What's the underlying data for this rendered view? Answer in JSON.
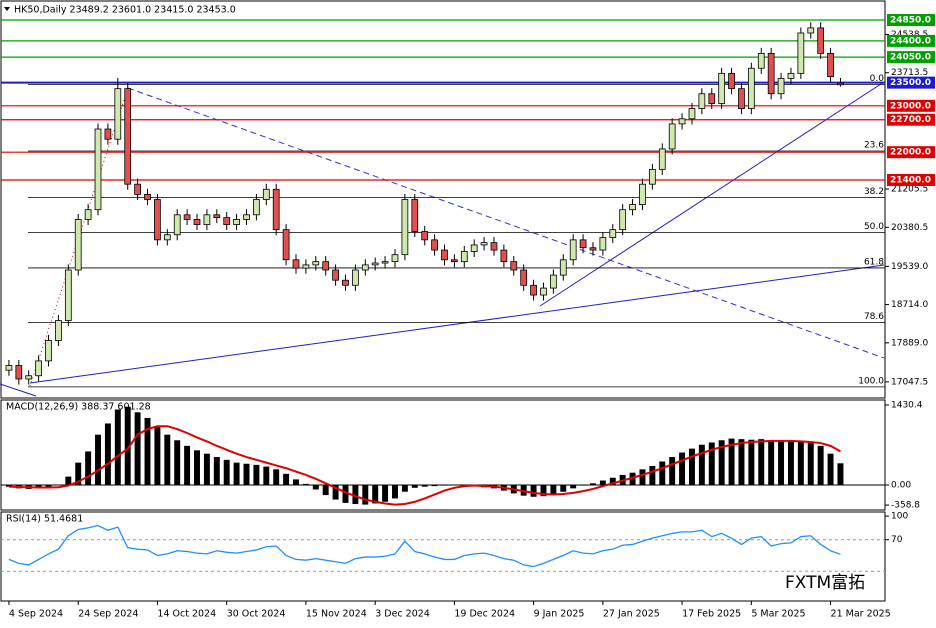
{
  "chart_data": {
    "type": "candlestick",
    "title": "HK50,Daily  23489.2 23601.0 23415.0 23453.0",
    "watermark": "FXTM富拓",
    "up_color": "#cfe8b0",
    "down_color": "#e05050",
    "wick_color": "#000000",
    "ylim": [
      16700,
      25260
    ],
    "yticks": [
      24538.5,
      23713.5,
      21205.5,
      20380.5,
      {
        "value": 19539,
        "label": "19539.0"
      },
      {
        "value": 18714,
        "label": "18714.0"
      },
      {
        "value": 17889,
        "label": "17889.0"
      },
      17047.5
    ],
    "xlim": [
      -0.8,
      88.5
    ],
    "xticks": [
      {
        "value": 0,
        "label": "4 Sep 2024"
      },
      {
        "value": 7,
        "label": "24 Sep 2024"
      },
      {
        "value": 15,
        "label": "14 Oct 2024"
      },
      {
        "value": 22,
        "label": "30 Oct 2024"
      },
      {
        "value": 30,
        "label": "15 Nov 2024"
      },
      {
        "value": 37,
        "label": "3 Dec 2024"
      },
      {
        "value": 45,
        "label": "19 Dec 2024"
      },
      {
        "value": 53,
        "label": "9 Jan 2025"
      },
      {
        "value": 60,
        "label": "27 Jan 2025"
      },
      {
        "value": 68,
        "label": "17 Feb 2025"
      },
      {
        "value": 75,
        "label": "5 Mar 2025"
      },
      {
        "value": 83,
        "label": "21 Mar 2025"
      }
    ],
    "levels": [
      {
        "value": 24850,
        "label": "24850.0",
        "color": "#00a000"
      },
      {
        "value": 24400,
        "label": "24400.0",
        "color": "#00a000"
      },
      {
        "value": 24050,
        "label": "24050.0",
        "color": "#00a000"
      },
      {
        "value": 23500,
        "label": "23500.0",
        "color": "#1a1ad0"
      },
      {
        "value": 23000,
        "label": "23000.0",
        "color": "#e00000"
      },
      {
        "value": 22700,
        "label": "22700.0",
        "color": "#e00000"
      },
      {
        "value": 22000,
        "label": "22000.0",
        "color": "#e00000"
      },
      {
        "value": 21400,
        "label": "21400.0",
        "color": "#e00000"
      }
    ],
    "fibonacci": [
      {
        "value": 23460,
        "label": "0.0"
      },
      {
        "value": 22025,
        "label": "23.6"
      },
      {
        "value": 21026,
        "label": "38.2"
      },
      {
        "value": 20265,
        "label": "50.0"
      },
      {
        "value": 19504,
        "label": "61.8"
      },
      {
        "value": 18331,
        "label": "78.6"
      },
      {
        "value": 16940,
        "label": "100.0"
      }
    ],
    "open": [
      17300,
      17400,
      17110,
      17180,
      17500,
      17940,
      18370,
      19460,
      20550,
      20760,
      22500,
      22280,
      23370,
      21310,
      21090,
      20980,
      20110,
      20220,
      20650,
      20550,
      20440,
      20650,
      20590,
      20440,
      20550,
      20650,
      20980,
      21200,
      20330,
      19680,
      19500,
      19570,
      19640,
      19460,
      19240,
      19130,
      19460,
      19570,
      19610,
      19640,
      19790,
      20980,
      20290,
      20110,
      19890,
      19680,
      19640,
      19860,
      20000,
      20050,
      19890,
      19640,
      19460,
      19130,
      18920,
      19070,
      19350,
      19680,
      20110,
      19940,
      19890,
      20160,
      20330,
      20760,
      20870,
      21310,
      21630,
      22070,
      22610,
      22720,
      22940,
      23260,
      23050,
      23700,
      23370,
      22940,
      23810,
      24130,
      23260,
      23590,
      23700,
      24570,
      24680,
      24130,
      23489.2
    ],
    "high": [
      17520,
      17520,
      17300,
      17620,
      18060,
      18490,
      19580,
      20670,
      20880,
      22620,
      22620,
      23601,
      23490,
      21430,
      21210,
      21100,
      20340,
      20770,
      20770,
      20670,
      20770,
      20770,
      20710,
      20670,
      20770,
      21100,
      21320,
      21320,
      20450,
      19800,
      19690,
      19760,
      19760,
      19580,
      19360,
      19580,
      19690,
      19730,
      19760,
      19910,
      21100,
      21100,
      20410,
      20230,
      20010,
      19800,
      19980,
      20120,
      20170,
      20170,
      20010,
      19760,
      19580,
      19250,
      19190,
      19470,
      19800,
      20230,
      20230,
      20060,
      20280,
      20450,
      20880,
      20990,
      21430,
      21750,
      22190,
      22730,
      22840,
      23060,
      23380,
      23380,
      23820,
      23820,
      23490,
      23930,
      24250,
      24250,
      23710,
      23820,
      24690,
      24800,
      24800,
      24250,
      23601
    ],
    "low": [
      17180,
      16990,
      16990,
      17060,
      17380,
      17820,
      18250,
      19340,
      20430,
      20640,
      22160,
      22160,
      21190,
      20970,
      20860,
      19990,
      19990,
      20100,
      20430,
      20320,
      20320,
      20470,
      20320,
      20320,
      20430,
      20530,
      20860,
      20210,
      19560,
      19380,
      19380,
      19450,
      19340,
      19120,
      19010,
      19010,
      19340,
      19450,
      19490,
      19520,
      19670,
      20170,
      19990,
      19770,
      19560,
      19520,
      19520,
      19740,
      19880,
      19770,
      19520,
      19340,
      19010,
      18800,
      18800,
      18950,
      19230,
      19560,
      19820,
      19770,
      19770,
      20040,
      20210,
      20640,
      20750,
      21190,
      21510,
      21950,
      22490,
      22600,
      22820,
      22930,
      22930,
      23250,
      22820,
      22820,
      23690,
      23140,
      23140,
      23470,
      23580,
      24450,
      24010,
      23510,
      23415
    ],
    "close": [
      17400,
      17110,
      17180,
      17500,
      17940,
      18370,
      19460,
      20550,
      20760,
      22500,
      22280,
      23370,
      21310,
      21090,
      20980,
      20110,
      20220,
      20650,
      20550,
      20440,
      20650,
      20590,
      20440,
      20550,
      20650,
      20980,
      21200,
      20330,
      19680,
      19500,
      19570,
      19640,
      19460,
      19240,
      19130,
      19460,
      19570,
      19610,
      19640,
      19790,
      20980,
      20290,
      20110,
      19890,
      19680,
      19640,
      19860,
      20000,
      20050,
      19890,
      19640,
      19460,
      19130,
      18920,
      19070,
      19350,
      19680,
      20110,
      19940,
      19890,
      20160,
      20330,
      20760,
      20870,
      21310,
      21630,
      22070,
      22610,
      22720,
      22940,
      23260,
      23050,
      23700,
      23370,
      22940,
      23810,
      24130,
      23260,
      23590,
      23700,
      24570,
      24680,
      24130,
      23630,
      23453
    ],
    "macd": {
      "title": "MACD(12,26,9) 388.37 601.28",
      "ylim": [
        -447,
        1520
      ],
      "yticks": [
        1430.4,
        {
          "value": 0,
          "label": "0.00"
        },
        -358.8
      ],
      "histogram_color": "#000000",
      "signal_color": "#e00000",
      "histogram": [
        -30,
        -60,
        -70,
        -60,
        -40,
        0,
        150,
        400,
        600,
        900,
        1100,
        1350,
        1400,
        1300,
        1200,
        1050,
        900,
        800,
        700,
        620,
        560,
        500,
        450,
        400,
        380,
        360,
        330,
        280,
        200,
        100,
        20,
        -80,
        -180,
        -260,
        -320,
        -340,
        -350,
        -330,
        -300,
        -240,
        -120,
        -50,
        -30,
        -20,
        -10,
        0,
        -10,
        -20,
        -40,
        -60,
        -100,
        -150,
        -190,
        -210,
        -200,
        -170,
        -120,
        -60,
        -10,
        30,
        80,
        130,
        180,
        220,
        280,
        340,
        420,
        500,
        580,
        650,
        720,
        760,
        800,
        830,
        820,
        810,
        820,
        800,
        780,
        790,
        770,
        760,
        700,
        560,
        388.37
      ],
      "signal": [
        -30,
        -35,
        -40,
        -45,
        -45,
        -40,
        -10,
        60,
        150,
        260,
        380,
        520,
        650,
        900,
        1000,
        1050,
        1050,
        1000,
        930,
        850,
        780,
        700,
        630,
        560,
        500,
        450,
        400,
        350,
        300,
        240,
        180,
        110,
        30,
        -50,
        -130,
        -200,
        -260,
        -300,
        -330,
        -350,
        -340,
        -300,
        -240,
        -170,
        -100,
        -50,
        -20,
        -10,
        -20,
        -30,
        -50,
        -80,
        -110,
        -140,
        -160,
        -170,
        -160,
        -140,
        -110,
        -70,
        -20,
        30,
        80,
        130,
        180,
        240,
        300,
        370,
        440,
        510,
        570,
        630,
        680,
        720,
        750,
        770,
        780,
        790,
        790,
        790,
        780,
        770,
        750,
        700,
        601.28
      ]
    },
    "rsi": {
      "title": "RSI(14) 51.4681",
      "ylim": [
        -7.8,
        105.2
      ],
      "yticks": [
        100,
        70
      ],
      "levels": [
        70,
        30
      ],
      "color": "#1e90ff",
      "values": [
        45,
        40,
        38,
        45,
        52,
        58,
        75,
        83,
        85,
        88,
        82,
        86,
        60,
        58,
        57,
        50,
        52,
        56,
        55,
        53,
        52,
        56,
        54,
        53,
        55,
        57,
        61,
        62,
        50,
        45,
        44,
        46,
        44,
        42,
        40,
        46,
        48,
        48,
        49,
        52,
        68,
        55,
        52,
        48,
        45,
        45,
        50,
        52,
        53,
        50,
        46,
        44,
        38,
        36,
        40,
        45,
        50,
        56,
        53,
        52,
        56,
        58,
        63,
        64,
        68,
        72,
        75,
        78,
        80,
        80,
        82,
        74,
        78,
        72,
        64,
        72,
        74,
        62,
        65,
        66,
        74,
        75,
        64,
        56,
        51.4681
      ]
    }
  }
}
